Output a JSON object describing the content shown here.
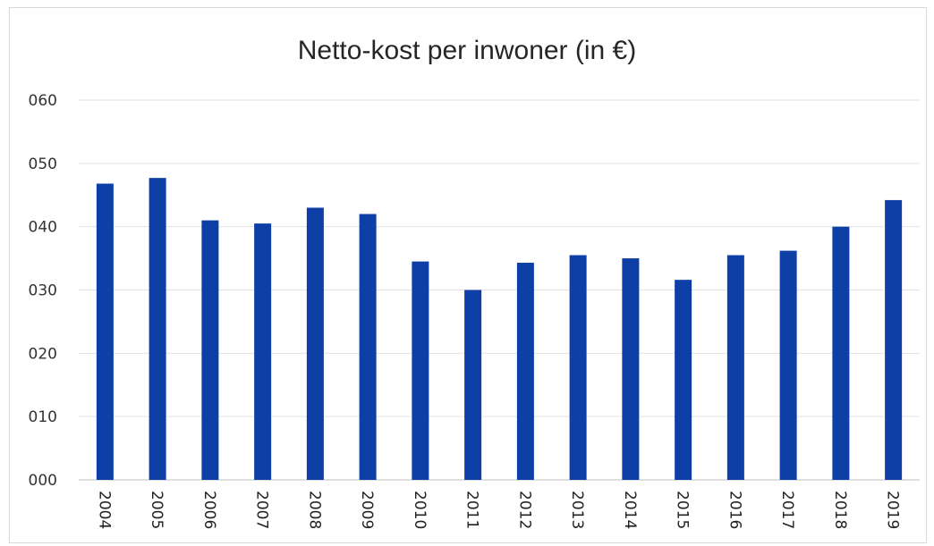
{
  "chart_data": {
    "type": "bar",
    "title": "Netto-kost per inwoner (in €)",
    "xlabel": "",
    "ylabel": "",
    "categories": [
      "2004",
      "2005",
      "2006",
      "2007",
      "2008",
      "2009",
      "2010",
      "2011",
      "2012",
      "2013",
      "2014",
      "2015",
      "2016",
      "2017",
      "2018",
      "2019"
    ],
    "values": [
      46.8,
      47.7,
      41.0,
      40.5,
      43.0,
      42.0,
      34.5,
      30.0,
      34.3,
      35.5,
      35.0,
      31.6,
      35.5,
      36.2,
      40.0,
      44.2
    ],
    "y_tick_labels": [
      "000",
      "010",
      "020",
      "030",
      "040",
      "050",
      "060"
    ],
    "ylim": [
      0,
      60
    ],
    "grid": true,
    "legend": "none",
    "bar_color": "#0d3fa6"
  }
}
